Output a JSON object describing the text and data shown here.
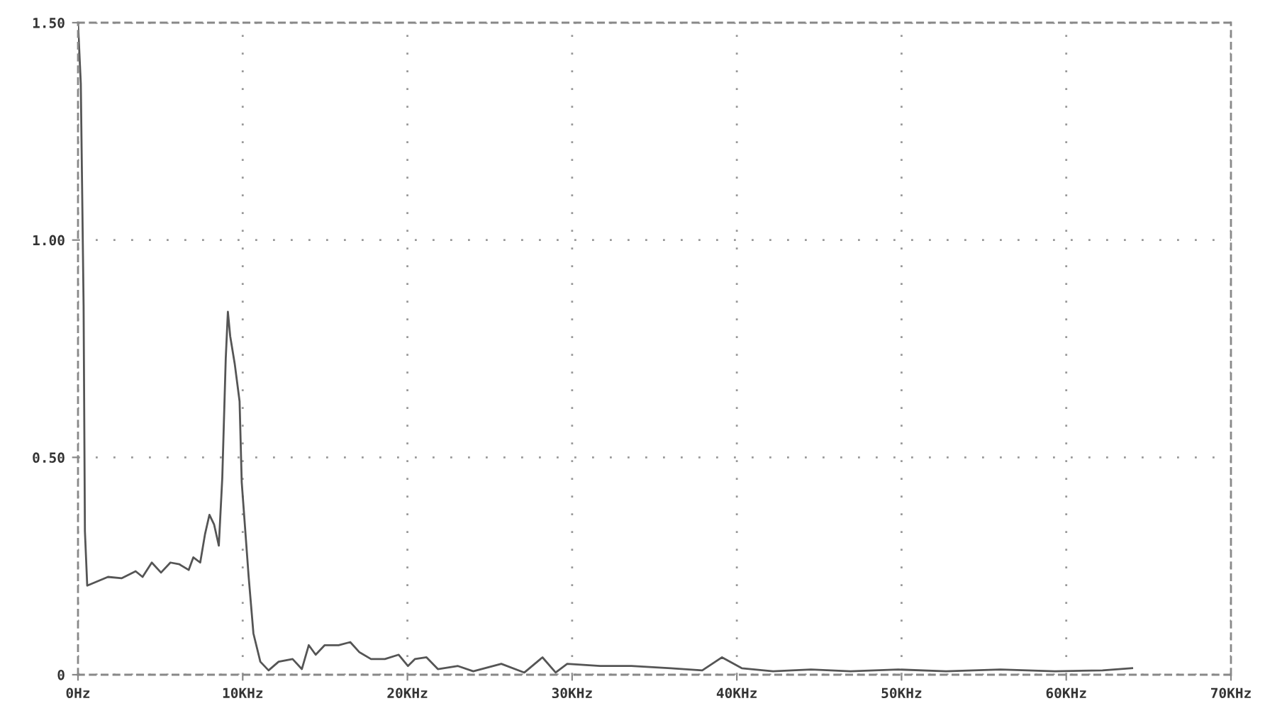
{
  "chart_data": {
    "type": "line",
    "x": [
      0,
      0.17,
      0.34,
      0.42,
      0.56,
      1.82,
      2.66,
      3.5,
      3.92,
      4.48,
      5.04,
      5.61,
      6.16,
      6.72,
      7.0,
      7.42,
      7.71,
      7.98,
      8.26,
      8.55,
      8.76,
      8.97,
      9.1,
      9.24,
      9.52,
      9.81,
      9.94,
      10.36,
      10.65,
      11.07,
      11.57,
      12.18,
      13.03,
      13.59,
      14.01,
      14.43,
      14.98,
      15.82,
      16.53,
      17.08,
      17.79,
      18.63,
      19.47,
      20.03,
      20.45,
      21.16,
      21.85,
      23.07,
      24.0,
      25.7,
      27.1,
      28.2,
      29.0,
      29.7,
      31.7,
      33.6,
      36.0,
      37.9,
      39.1,
      40.3,
      42.2,
      44.5,
      46.9,
      49.8,
      52.7,
      56.0,
      59.3,
      62.2,
      64.0
    ],
    "series": [
      {
        "color": "#555555",
        "values": [
          1.5,
          1.36,
          0.85,
          0.33,
          0.205,
          0.225,
          0.222,
          0.238,
          0.225,
          0.258,
          0.235,
          0.258,
          0.254,
          0.241,
          0.27,
          0.258,
          0.323,
          0.368,
          0.346,
          0.297,
          0.453,
          0.727,
          0.835,
          0.779,
          0.714,
          0.629,
          0.443,
          0.226,
          0.095,
          0.03,
          0.01,
          0.03,
          0.036,
          0.013,
          0.068,
          0.046,
          0.068,
          0.068,
          0.075,
          0.052,
          0.036,
          0.036,
          0.046,
          0.02,
          0.036,
          0.04,
          0.013,
          0.02,
          0.008,
          0.025,
          0.005,
          0.04,
          0.005,
          0.025,
          0.02,
          0.02,
          0.015,
          0.01,
          0.04,
          0.015,
          0.008,
          0.012,
          0.008,
          0.012,
          0.008,
          0.012,
          0.008,
          0.01,
          0.015
        ]
      }
    ],
    "xlim": [
      0,
      70
    ],
    "xticks": [
      {
        "value": 0,
        "label": "0Hz"
      },
      {
        "value": 10,
        "label": "10KHz"
      },
      {
        "value": 20,
        "label": "20KHz"
      },
      {
        "value": 30,
        "label": "30KHz"
      },
      {
        "value": 40,
        "label": "40KHz"
      },
      {
        "value": 50,
        "label": "50KHz"
      },
      {
        "value": 60,
        "label": "60KHz"
      },
      {
        "value": 70,
        "label": "70KHz"
      }
    ],
    "ylim": [
      0,
      1.5
    ],
    "yticks": [
      0,
      {
        "value": 0.5,
        "label": "0.50"
      },
      {
        "value": 1.0,
        "label": "1.00"
      },
      {
        "value": 1.5,
        "label": "1.50"
      }
    ],
    "grid": true,
    "line_style": "solid",
    "marker": "none"
  }
}
